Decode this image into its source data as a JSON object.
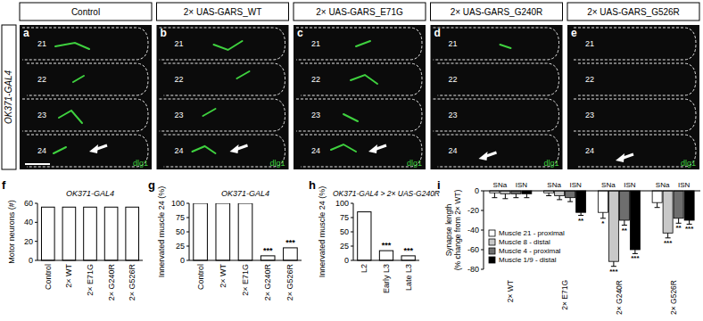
{
  "panels": {
    "row_label": "OK371-GAL4",
    "stain": "dlg1",
    "items": [
      {
        "letter": "a",
        "title": "Control",
        "muscles": [
          "21",
          "22",
          "23",
          "24"
        ]
      },
      {
        "letter": "b",
        "title": "2× UAS-GARS_WT",
        "muscles": [
          "21",
          "22",
          "23",
          "24"
        ]
      },
      {
        "letter": "c",
        "title": "2× UAS-GARS_E71G",
        "muscles": [
          "21",
          "22",
          "23",
          "24"
        ]
      },
      {
        "letter": "d",
        "title": "2× UAS-GARS_G240R",
        "muscles": [
          "21",
          "22",
          "23",
          "24"
        ]
      },
      {
        "letter": "e",
        "title": "2× UAS-GARS_G526R",
        "muscles": [
          "21",
          "22",
          "23",
          "24"
        ]
      }
    ]
  },
  "chart_data": [
    {
      "letter": "f",
      "type": "bar",
      "title": "OK371-GAL4",
      "y_label": "Motor neurons (#)",
      "categories": [
        "Control",
        "2× WT",
        "2× E71G",
        "2× G240R",
        "2× G526R"
      ],
      "values": [
        56,
        56,
        56,
        56,
        56
      ],
      "color": "#ffffff",
      "ylim": [
        0,
        60
      ],
      "yticks": [
        0,
        20,
        40,
        60
      ]
    },
    {
      "letter": "g",
      "type": "bar",
      "title": "OK371-GAL4",
      "y_label": "Innervated muscle 24 (%)",
      "categories": [
        "Control",
        "2× WT",
        "2× E71G",
        "2× G240R",
        "2× G526R"
      ],
      "values": [
        100,
        100,
        100,
        8,
        22
      ],
      "significance": [
        null,
        null,
        null,
        "***",
        "***"
      ],
      "color": "#ffffff",
      "ylim": [
        0,
        100
      ],
      "yticks": [
        0,
        25,
        50,
        75,
        100
      ]
    },
    {
      "letter": "h",
      "type": "bar",
      "title": "OK371-GAL4 > 2× UAS-G240R",
      "y_label": "Innervated muscle 24 (%)",
      "categories": [
        "L2",
        "Early L3",
        "Late L3"
      ],
      "values": [
        85,
        17,
        8
      ],
      "significance": [
        null,
        "***",
        "***"
      ],
      "color": "#ffffff",
      "ylim": [
        0,
        100
      ],
      "yticks": [
        0,
        25,
        50,
        75,
        100
      ]
    },
    {
      "letter": "i",
      "type": "bar",
      "y_label": [
        "Synapse length",
        "(% change from 2× WT)"
      ],
      "categories": [
        "2× WT",
        "2× E71G",
        "2× G240R",
        "2× G526R"
      ],
      "group_labels": [
        "SNa",
        "ISN"
      ],
      "series": [
        {
          "name": "Muscle 21 - proximal",
          "color": "#ffffff",
          "values": [
            -2,
            -2,
            -22,
            -12
          ],
          "errors": [
            5,
            3,
            6,
            5
          ],
          "significance": [
            null,
            null,
            "*",
            null
          ]
        },
        {
          "name": "Muscle 8 - distal",
          "color": "#c8c8c8",
          "values": [
            -3,
            -5,
            -72,
            -43
          ],
          "errors": [
            5,
            4,
            5,
            5
          ],
          "significance": [
            null,
            null,
            "***",
            "***"
          ]
        },
        {
          "name": "Muscle 4 - proximal",
          "color": "#6e6e6e",
          "values": [
            -3,
            -7,
            -30,
            -28
          ],
          "errors": [
            4,
            4,
            5,
            5
          ],
          "significance": [
            null,
            null,
            "**",
            "**"
          ]
        },
        {
          "name": "Muscle 1/9 - distal",
          "color": "#000000",
          "values": [
            -3,
            -22,
            -60,
            -30
          ],
          "errors": [
            4,
            3,
            4,
            4
          ],
          "significance": [
            null,
            "**",
            "***",
            "***"
          ]
        }
      ],
      "ylim": [
        -80,
        0
      ],
      "yticks": [
        -80,
        -60,
        -40,
        -20,
        0
      ],
      "legend": "lower left"
    }
  ]
}
